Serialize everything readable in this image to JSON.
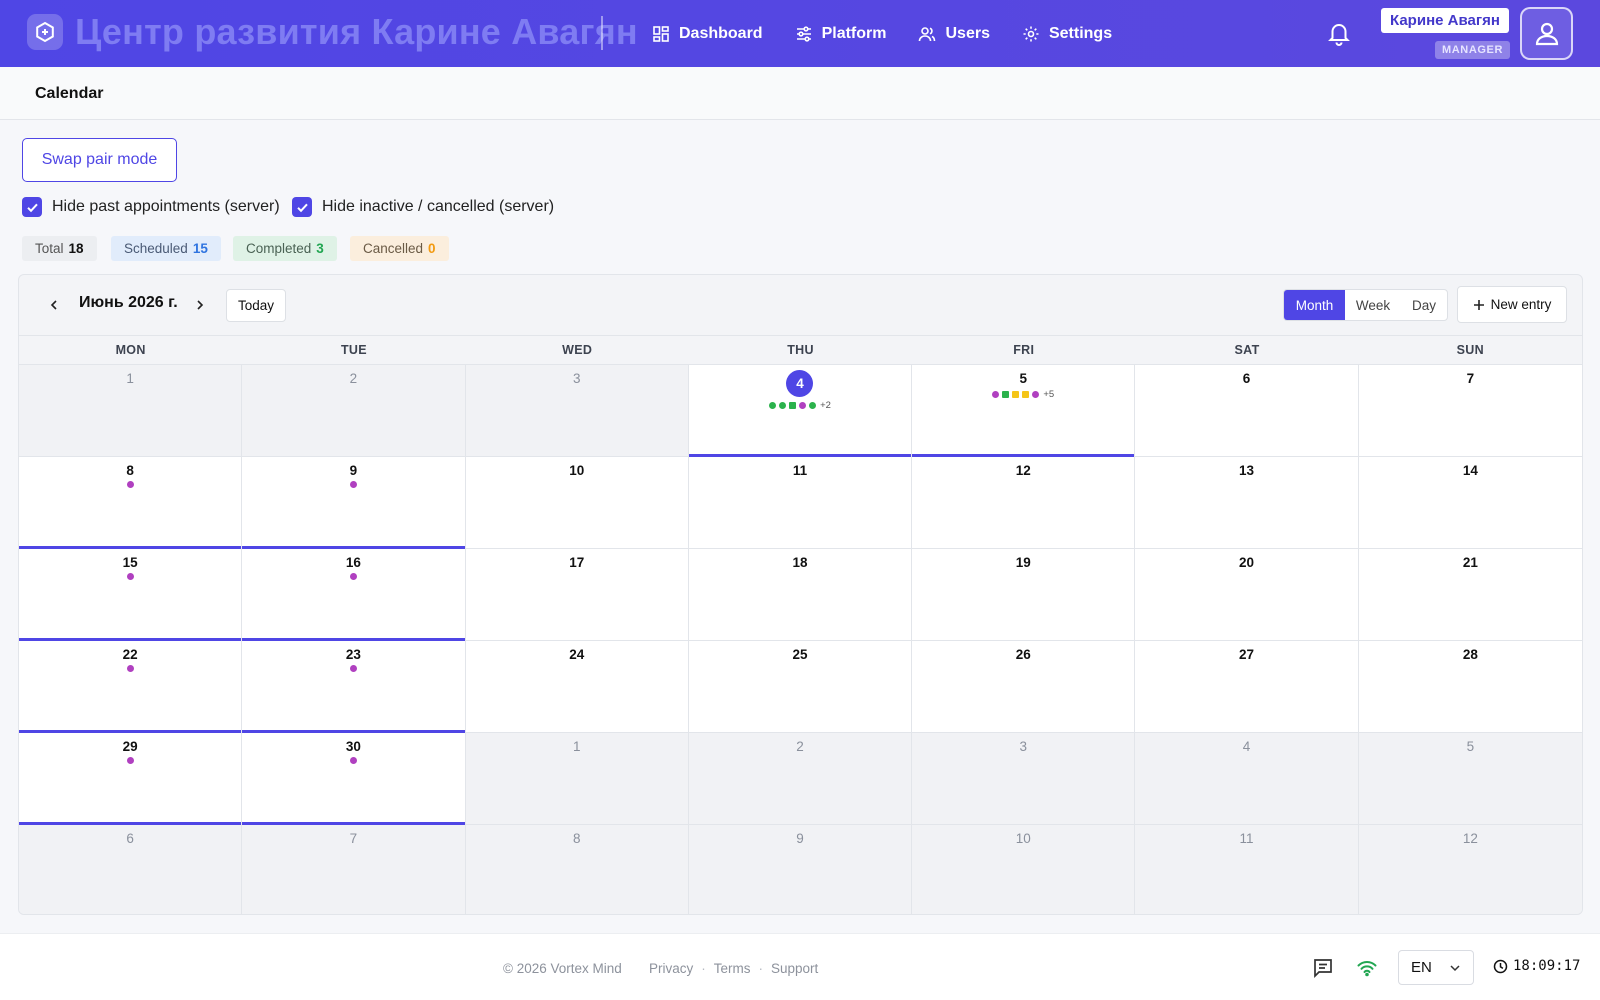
{
  "header": {
    "brand_title": "Центр развития Карине Авагян",
    "nav": [
      {
        "label": "Dashboard",
        "icon": "dashboard-icon"
      },
      {
        "label": "Platform",
        "icon": "sliders-icon"
      },
      {
        "label": "Users",
        "icon": "users-icon"
      },
      {
        "label": "Settings",
        "icon": "gear-icon"
      }
    ],
    "user_name": "Карине Авагян",
    "user_role": "MANAGER"
  },
  "page": {
    "title": "Calendar"
  },
  "controls": {
    "swap_button": "Swap pair mode",
    "hide_past": {
      "label": "Hide past appointments (server)",
      "checked": true
    },
    "hide_inactive": {
      "label": "Hide inactive / cancelled (server)",
      "checked": true
    }
  },
  "stats": {
    "total_label": "Total",
    "total": "18",
    "scheduled_label": "Scheduled",
    "scheduled": "15",
    "completed_label": "Completed",
    "completed": "3",
    "cancelled_label": "Cancelled",
    "cancelled": "0"
  },
  "calendar": {
    "month_label": "Июнь 2026 г.",
    "today_label": "Today",
    "views": [
      {
        "label": "Month",
        "active": true
      },
      {
        "label": "Week",
        "active": false
      },
      {
        "label": "Day",
        "active": false
      }
    ],
    "new_entry_label": "New entry",
    "weekdays": [
      "MON",
      "TUE",
      "WED",
      "THU",
      "FRI",
      "SAT",
      "SUN"
    ],
    "colors": {
      "purple": "#b040c0",
      "green": "#2bb24c",
      "yellow": "#f5c518",
      "accent": "#4f46e5"
    },
    "weeks": [
      [
        {
          "day": "1",
          "other": true
        },
        {
          "day": "2",
          "other": true
        },
        {
          "day": "3",
          "other": true
        },
        {
          "day": "4",
          "today": true,
          "underline": true,
          "dots": [
            "green",
            "green",
            "green-sq",
            "purple",
            "green"
          ],
          "more": "+2"
        },
        {
          "day": "5",
          "underline": true,
          "dots": [
            "purple",
            "green-sq",
            "yellow-sq",
            "yellow-sq",
            "purple"
          ],
          "more": "+5"
        },
        {
          "day": "6"
        },
        {
          "day": "7"
        }
      ],
      [
        {
          "day": "8",
          "underline": true,
          "dots": [
            "purple"
          ]
        },
        {
          "day": "9",
          "underline": true,
          "dots": [
            "purple"
          ]
        },
        {
          "day": "10"
        },
        {
          "day": "11"
        },
        {
          "day": "12"
        },
        {
          "day": "13"
        },
        {
          "day": "14"
        }
      ],
      [
        {
          "day": "15",
          "underline": true,
          "dots": [
            "purple"
          ]
        },
        {
          "day": "16",
          "underline": true,
          "dots": [
            "purple"
          ]
        },
        {
          "day": "17"
        },
        {
          "day": "18"
        },
        {
          "day": "19"
        },
        {
          "day": "20"
        },
        {
          "day": "21"
        }
      ],
      [
        {
          "day": "22",
          "underline": true,
          "dots": [
            "purple"
          ]
        },
        {
          "day": "23",
          "underline": true,
          "dots": [
            "purple"
          ]
        },
        {
          "day": "24"
        },
        {
          "day": "25"
        },
        {
          "day": "26"
        },
        {
          "day": "27"
        },
        {
          "day": "28"
        }
      ],
      [
        {
          "day": "29",
          "underline": true,
          "dots": [
            "purple"
          ]
        },
        {
          "day": "30",
          "underline": true,
          "dots": [
            "purple"
          ]
        },
        {
          "day": "1",
          "other": true
        },
        {
          "day": "2",
          "other": true
        },
        {
          "day": "3",
          "other": true
        },
        {
          "day": "4",
          "other": true
        },
        {
          "day": "5",
          "other": true
        }
      ],
      [
        {
          "day": "6",
          "other": true
        },
        {
          "day": "7",
          "other": true
        },
        {
          "day": "8",
          "other": true
        },
        {
          "day": "9",
          "other": true
        },
        {
          "day": "10",
          "other": true
        },
        {
          "day": "11",
          "other": true
        },
        {
          "day": "12",
          "other": true
        }
      ]
    ]
  },
  "footer": {
    "copyright": "© 2026 Vortex Mind",
    "links": [
      "Privacy",
      "Terms",
      "Support"
    ],
    "language": "EN",
    "time": "18:09:17"
  }
}
